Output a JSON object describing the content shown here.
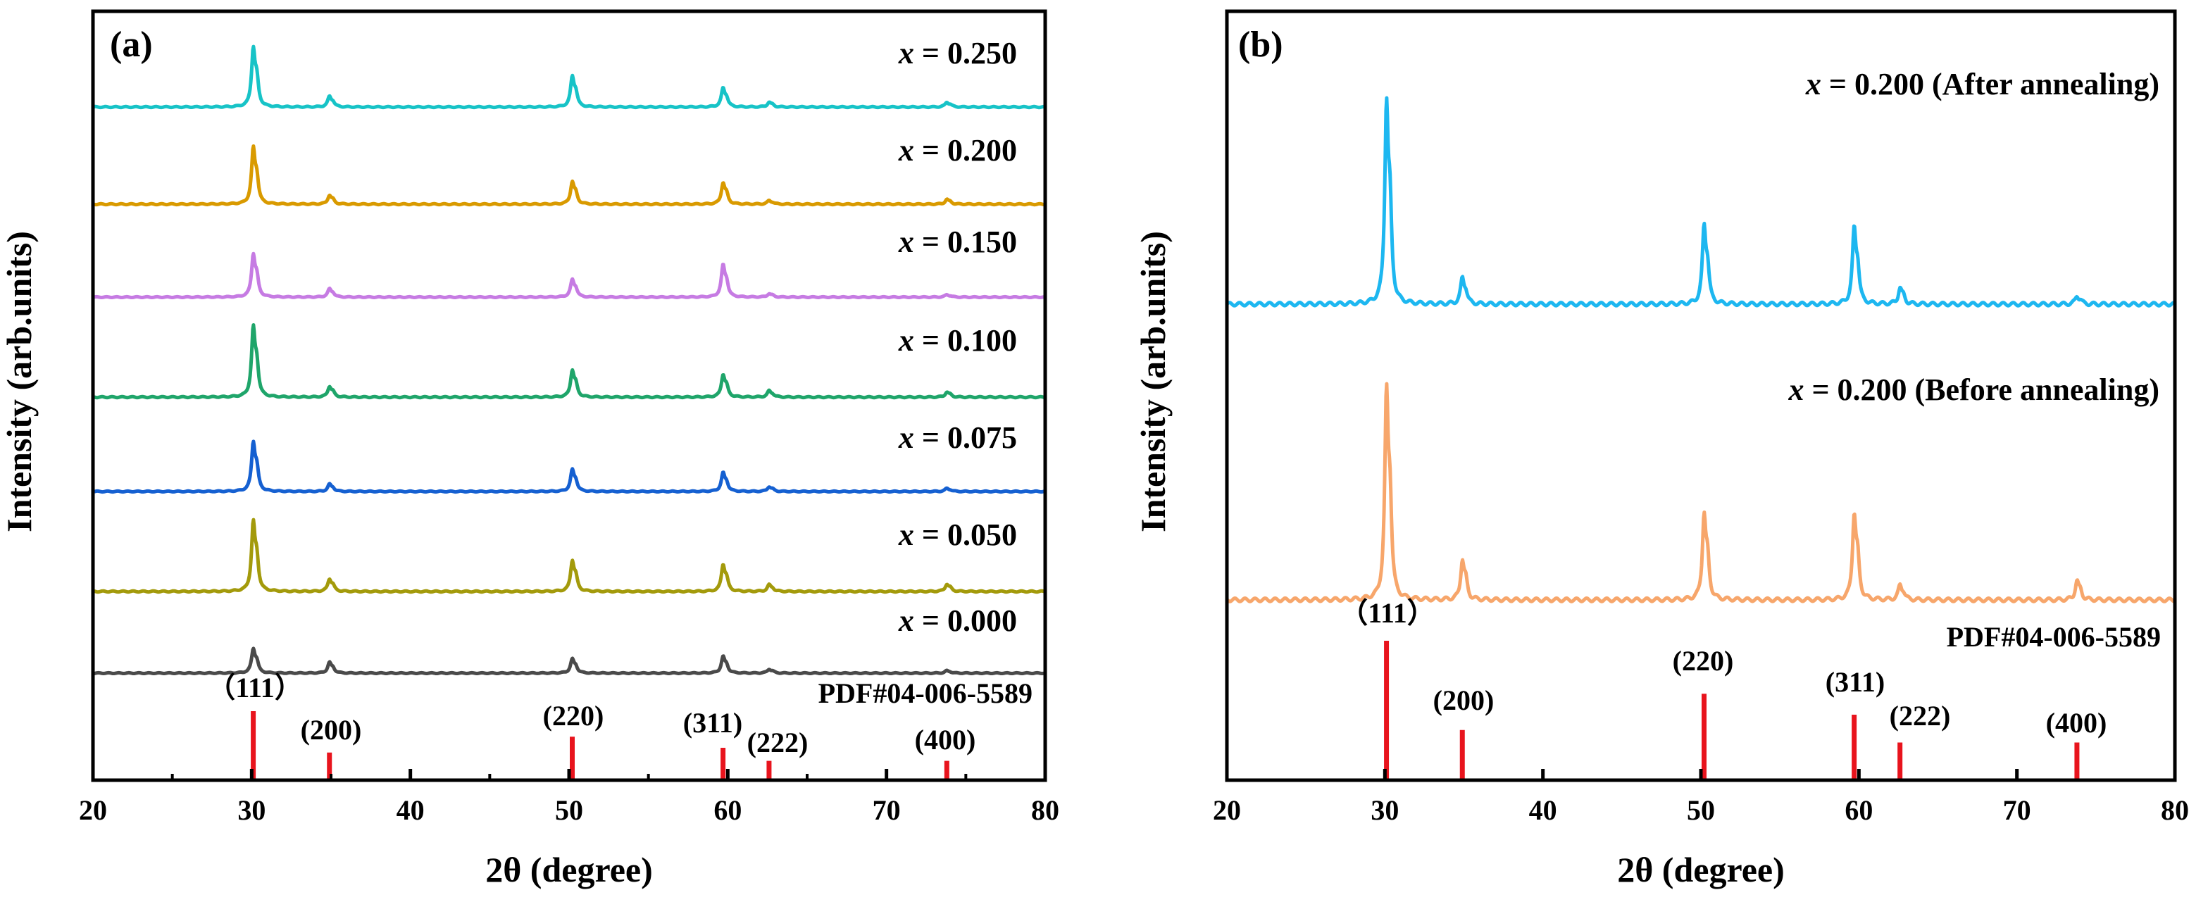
{
  "chart_data": [
    {
      "type": "line",
      "panel_label": "(a)",
      "xlabel": "2θ (degree)",
      "ylabel": "Intensity (arb.units)",
      "xlim": [
        20,
        80
      ],
      "xticks": [
        "20",
        "30",
        "40",
        "50",
        "60",
        "70",
        "80"
      ],
      "x_minor_step": 5,
      "y_ticks_shown": false,
      "stacked_offset": true,
      "peak_positions": [
        30.1,
        34.9,
        50.2,
        59.7,
        62.6,
        73.8
      ],
      "series": [
        {
          "var": "x",
          "value_text": " = 0.250",
          "color": "#17c3c7",
          "baseline": 0.0,
          "peaks": [
            1.0,
            0.18,
            0.52,
            0.32,
            0.08,
            0.08
          ]
        },
        {
          "var": "x",
          "value_text": " = 0.200",
          "color": "#d99a00",
          "baseline": 1.0,
          "peaks": [
            0.95,
            0.15,
            0.38,
            0.36,
            0.06,
            0.08
          ]
        },
        {
          "var": "x",
          "value_text": " = 0.150",
          "color": "#c67be3",
          "baseline": 2.0,
          "peaks": [
            0.88,
            0.17,
            0.36,
            0.66,
            0.07,
            0.05
          ]
        },
        {
          "var": "x",
          "value_text": " = 0.100",
          "color": "#1fa56a",
          "baseline": 3.0,
          "peaks": [
            1.12,
            0.17,
            0.43,
            0.36,
            0.1,
            0.08
          ]
        },
        {
          "var": "x",
          "value_text": " = 0.075",
          "color": "#1560d1",
          "baseline": 4.0,
          "peaks": [
            0.95,
            0.14,
            0.42,
            0.36,
            0.09,
            0.06
          ]
        },
        {
          "var": "x",
          "value_text": " = 0.050",
          "color": "#a39a0b",
          "baseline": 5.0,
          "peaks": [
            1.06,
            0.19,
            0.47,
            0.41,
            0.1,
            0.11
          ]
        },
        {
          "var": "x",
          "value_text": " = 0.000",
          "color": "#4a4a4a",
          "baseline": 6.0,
          "peaks": [
            0.5,
            0.22,
            0.29,
            0.34,
            0.08,
            0.05
          ]
        }
      ],
      "reference": {
        "label": "PDF#04-006-5589",
        "color": "#e8141d",
        "lines": [
          {
            "x": 30.1,
            "hkl": "（111）",
            "rel": 1.0
          },
          {
            "x": 34.9,
            "hkl": "(200)",
            "rel": 0.4
          },
          {
            "x": 50.2,
            "hkl": "(220)",
            "rel": 0.63
          },
          {
            "x": 59.7,
            "hkl": "(311)",
            "rel": 0.47
          },
          {
            "x": 62.6,
            "hkl": "(222)",
            "rel": 0.28
          },
          {
            "x": 73.8,
            "hkl": "(400)",
            "rel": 0.28
          }
        ]
      }
    },
    {
      "type": "line",
      "panel_label": "(b)",
      "xlabel": "2θ (degree)",
      "ylabel": "Intensity (arb.units)",
      "xlim": [
        20,
        80
      ],
      "xticks": [
        "20",
        "30",
        "40",
        "50",
        "60",
        "70",
        "80"
      ],
      "y_ticks_shown": false,
      "stacked_offset": true,
      "peak_positions": [
        30.1,
        34.9,
        50.2,
        59.7,
        62.6,
        73.8
      ],
      "series": [
        {
          "var": "x",
          "value_text": " = 0.200 (After annealing)",
          "color": "#1db7f0",
          "baseline": 0.0,
          "peaks": [
            1.0,
            0.13,
            0.39,
            0.38,
            0.08,
            0.04
          ]
        },
        {
          "var": "x",
          "value_text": " = 0.200 (Before annealing)",
          "color": "#f7a66b",
          "baseline": 1.0,
          "peaks": [
            1.0,
            0.19,
            0.41,
            0.41,
            0.07,
            0.09
          ]
        }
      ],
      "reference": {
        "label": "PDF#04-006-5589",
        "color": "#e8141d",
        "lines": [
          {
            "x": 30.1,
            "hkl": "（111）",
            "rel": 1.0
          },
          {
            "x": 34.9,
            "hkl": "(200)",
            "rel": 0.36
          },
          {
            "x": 50.2,
            "hkl": "(220)",
            "rel": 0.62
          },
          {
            "x": 59.7,
            "hkl": "(311)",
            "rel": 0.47
          },
          {
            "x": 62.6,
            "hkl": "(222)",
            "rel": 0.27
          },
          {
            "x": 73.8,
            "hkl": "(400)",
            "rel": 0.27
          }
        ]
      }
    }
  ]
}
